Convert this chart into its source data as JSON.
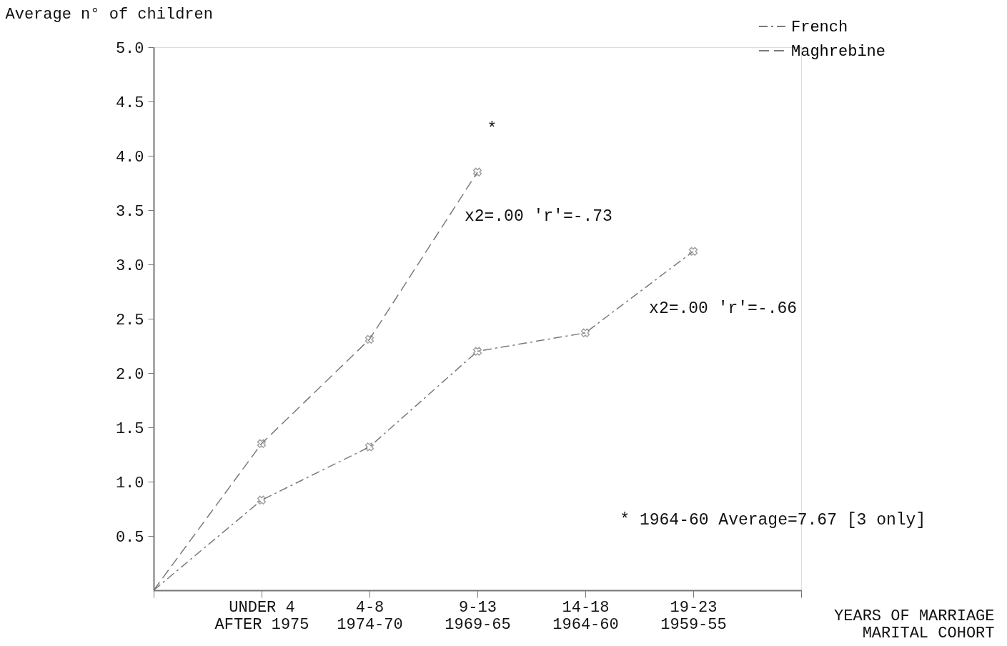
{
  "chart_data": {
    "type": "line",
    "ylabel": "Average n° of children",
    "xlabel": "YEARS OF MARRIAGE\nMARITAL COHORT",
    "categories": [
      null,
      "UNDER 4\nAFTER 1975",
      "4-8\n1974-70",
      "9-13\n1969-65",
      "14-18\n1964-60",
      "19-23\n1959-55",
      null
    ],
    "series": [
      {
        "name": "French",
        "color": "#7a7a7a",
        "line_style": "dashdot",
        "values": [
          0,
          0.83,
          1.32,
          2.2,
          2.37,
          3.12,
          null
        ]
      },
      {
        "name": "Maghrebine",
        "color": "#7a7a7a",
        "line_style": "dashed",
        "values": [
          0,
          1.35,
          2.31,
          3.85,
          null,
          null,
          null
        ]
      }
    ],
    "ylim": [
      0,
      5.0
    ],
    "yticks": [
      {
        "value": 0.5,
        "label": "0.5"
      },
      {
        "value": 1,
        "label": "1.0"
      },
      {
        "value": 1.5,
        "label": "1.5"
      },
      {
        "value": 2,
        "label": "2.0"
      },
      {
        "value": 2.5,
        "label": "2.5"
      },
      {
        "value": 3,
        "label": "3.0"
      },
      {
        "value": 3.5,
        "label": "3.5"
      },
      {
        "value": 4,
        "label": "4.0"
      },
      {
        "value": 4.5,
        "label": "4.5"
      },
      {
        "value": 5,
        "label": "5.0"
      }
    ],
    "marker": "cross",
    "grid": false,
    "legend": "top right",
    "annotations": [
      "*",
      "x2=.00 'r'=-.73",
      "x2=.00 'r'=-.66",
      "* 1964-60 Average=7.67 [3 only]"
    ]
  }
}
